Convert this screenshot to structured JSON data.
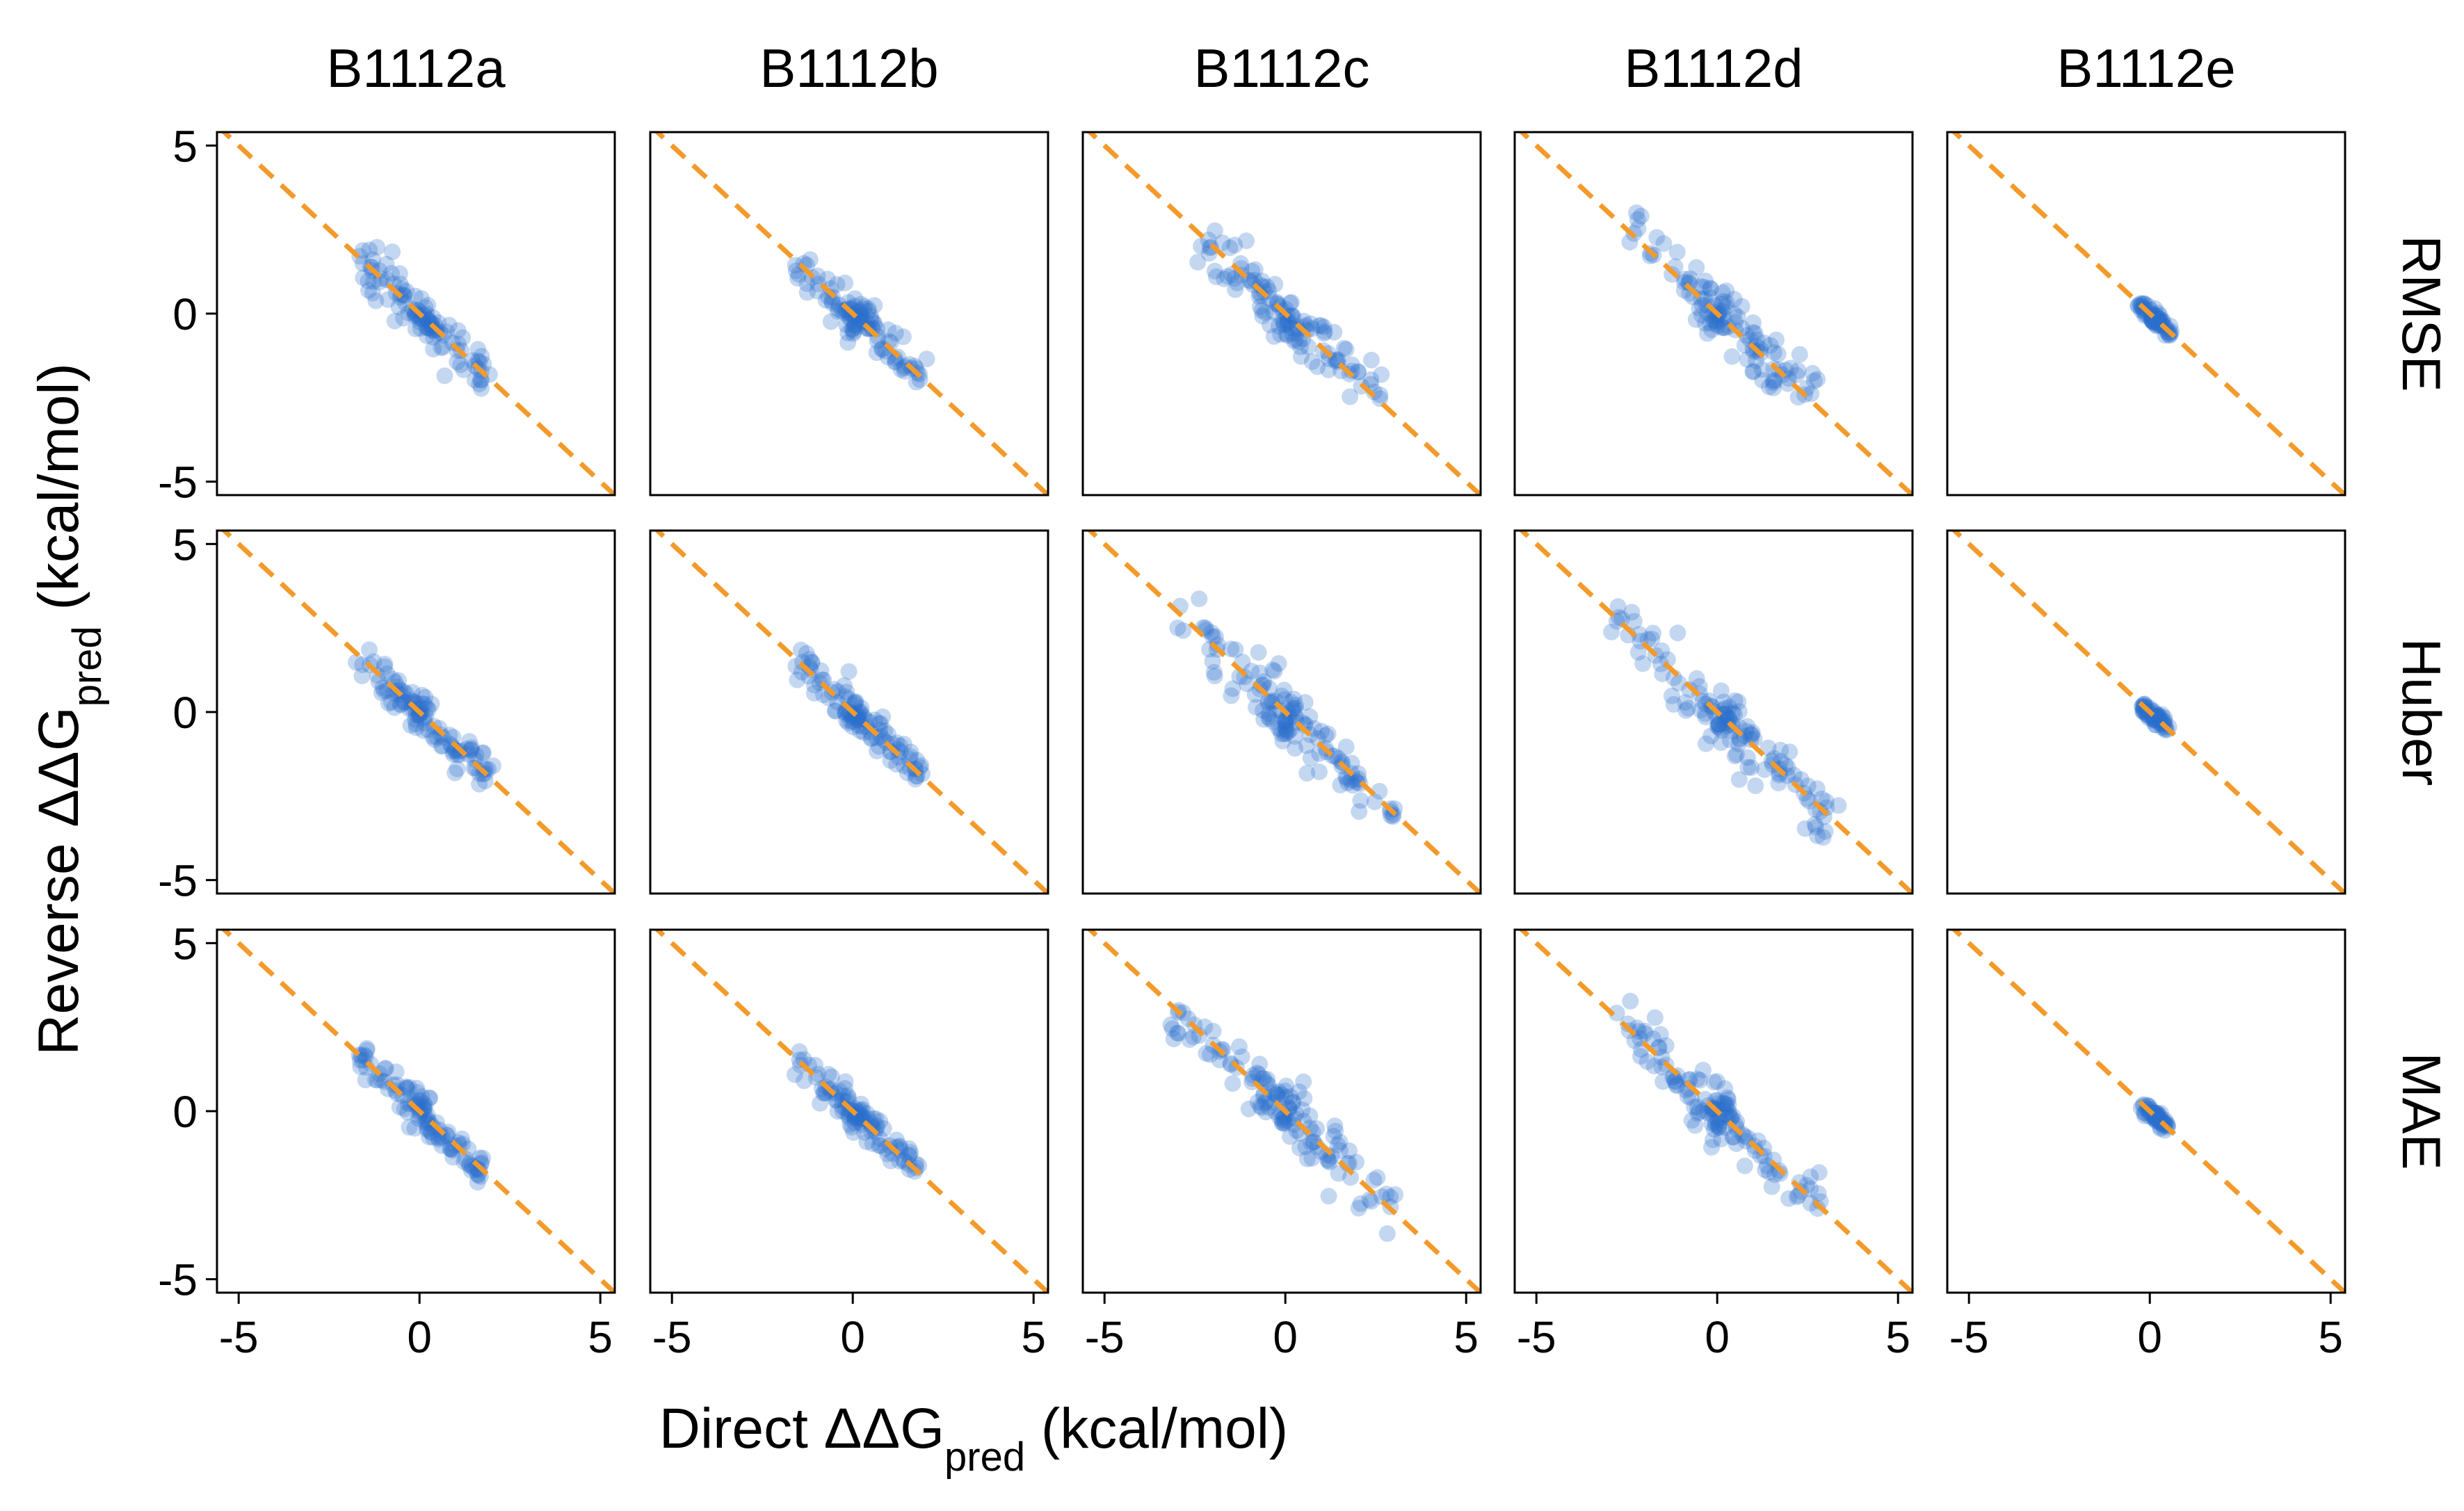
{
  "figure": {
    "x_axis_title": {
      "prefix": "Direct ",
      "symbol": "ΔΔG",
      "sub": "pred",
      "unit": " (kcal/mol)"
    },
    "y_axis_title": {
      "prefix": "Reverse ",
      "symbol": "ΔΔG",
      "sub": "pred",
      "unit": " (kcal/mol)"
    },
    "columns": [
      "B1112a",
      "B1112b",
      "B1112c",
      "B1112d",
      "B1112e"
    ],
    "rows": [
      "RMSE",
      "Huber",
      "MAE"
    ]
  },
  "chart_data": {
    "type": "scatter",
    "xlim": [
      -5.6,
      5.4
    ],
    "ylim": [
      -5.4,
      5.4
    ],
    "x_ticks": [
      -5,
      0,
      5
    ],
    "y_ticks": [
      -5,
      0,
      5
    ],
    "x_tick_labels": [
      "-5",
      "0",
      "5"
    ],
    "y_tick_labels": [
      "-5",
      "0",
      "5"
    ],
    "grid": false,
    "reference_line": {
      "slope": -1,
      "intercept": 0,
      "style": "dashed",
      "color": "#f39a2b"
    },
    "point_color": "#2c6fcb",
    "point_opacity": 0.28,
    "panels": [
      {
        "row": "RMSE",
        "column": "B1112a",
        "xrange": [
          -1.7,
          1.9
        ],
        "spread": 0.22,
        "n": 110
      },
      {
        "row": "RMSE",
        "column": "B1112b",
        "xrange": [
          -1.6,
          1.9
        ],
        "spread": 0.22,
        "n": 110
      },
      {
        "row": "RMSE",
        "column": "B1112c",
        "xrange": [
          -2.5,
          2.6
        ],
        "spread": 0.3,
        "n": 120
      },
      {
        "row": "RMSE",
        "column": "B1112d",
        "xrange": [
          -2.5,
          2.6
        ],
        "spread": 0.3,
        "n": 120
      },
      {
        "row": "RMSE",
        "column": "B1112e",
        "xrange": [
          -0.3,
          0.6
        ],
        "spread": 0.08,
        "n": 70
      },
      {
        "row": "Huber",
        "column": "B1112a",
        "xrange": [
          -1.7,
          1.9
        ],
        "spread": 0.2,
        "n": 110
      },
      {
        "row": "Huber",
        "column": "B1112b",
        "xrange": [
          -1.6,
          1.9
        ],
        "spread": 0.2,
        "n": 110
      },
      {
        "row": "Huber",
        "column": "B1112c",
        "xrange": [
          -3.0,
          3.2
        ],
        "spread": 0.3,
        "n": 130
      },
      {
        "row": "Huber",
        "column": "B1112d",
        "xrange": [
          -2.9,
          3.2
        ],
        "spread": 0.3,
        "n": 130
      },
      {
        "row": "Huber",
        "column": "B1112e",
        "xrange": [
          -0.2,
          0.5
        ],
        "spread": 0.07,
        "n": 60
      },
      {
        "row": "MAE",
        "column": "B1112a",
        "xrange": [
          -1.7,
          1.8
        ],
        "spread": 0.2,
        "n": 110
      },
      {
        "row": "MAE",
        "column": "B1112b",
        "xrange": [
          -1.6,
          1.8
        ],
        "spread": 0.2,
        "n": 110
      },
      {
        "row": "MAE",
        "column": "B1112c",
        "xrange": [
          -3.0,
          3.1
        ],
        "spread": 0.3,
        "n": 130
      },
      {
        "row": "MAE",
        "column": "B1112d",
        "xrange": [
          -2.9,
          3.1
        ],
        "spread": 0.3,
        "n": 130
      },
      {
        "row": "MAE",
        "column": "B1112e",
        "xrange": [
          -0.2,
          0.5
        ],
        "spread": 0.07,
        "n": 60
      }
    ]
  }
}
